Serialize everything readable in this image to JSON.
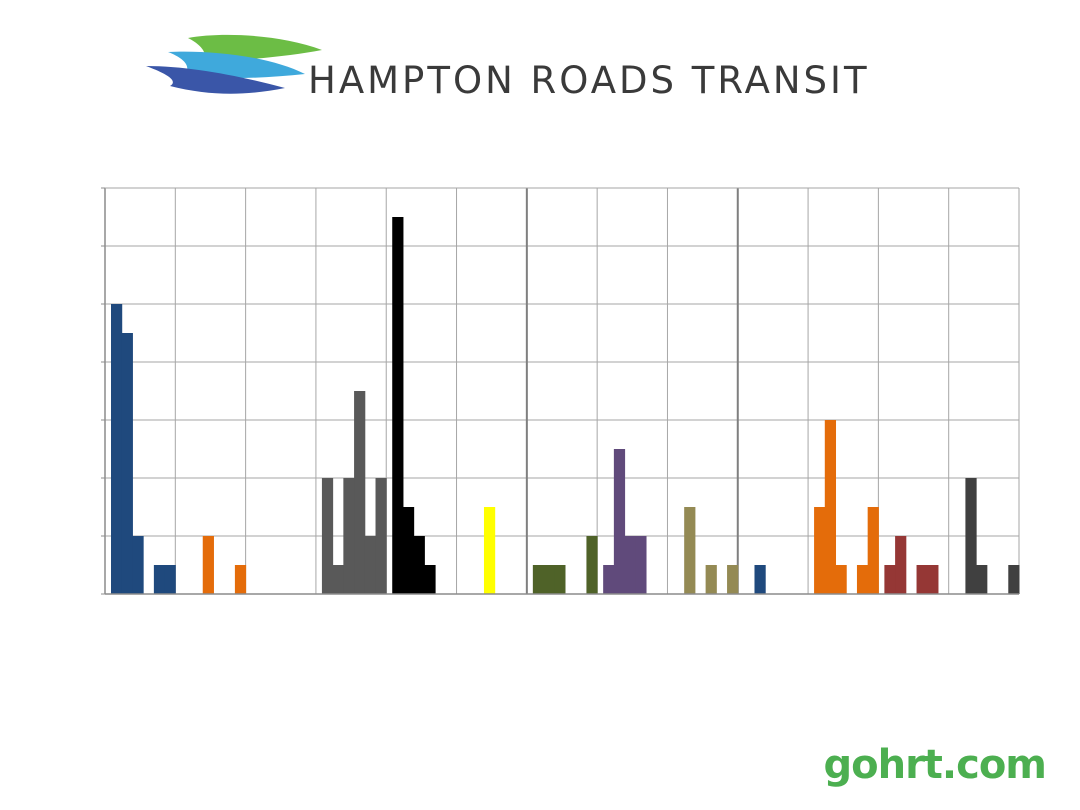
{
  "brand": {
    "name": "HAMPTON ROADS TRANSIT",
    "site": "gohrt.com",
    "logo_colors": [
      "#6cbd45",
      "#3fa9dc",
      "#3a56a8"
    ]
  },
  "chart_data": {
    "type": "bar",
    "title": "",
    "xlabel": "",
    "ylabel": "",
    "ylim": [
      0,
      14
    ],
    "y_gridline_step": 2,
    "group_count": 13,
    "group_dividers_bold_after": [
      6,
      9
    ],
    "grid": true,
    "series": [
      {
        "group": 1,
        "color": "#1f497d",
        "values": [
          10,
          9,
          2,
          0,
          1,
          1
        ]
      },
      {
        "group": 2,
        "color": "#e46c0a",
        "values": [
          0,
          0,
          2,
          0,
          0,
          1
        ]
      },
      {
        "group": 3,
        "color": "#595959",
        "values": [
          0,
          0,
          0,
          0,
          0,
          0
        ]
      },
      {
        "group": 4,
        "color": "#595959",
        "values": [
          4,
          1,
          4,
          7,
          2,
          4
        ]
      },
      {
        "group": 5,
        "color": "#000000",
        "values": [
          13,
          3,
          2,
          1,
          0,
          0
        ]
      },
      {
        "group": 6,
        "color": "#ffff00",
        "values": [
          0,
          0,
          3,
          0,
          0,
          0
        ]
      },
      {
        "group": 7,
        "color": "#4f6228",
        "values": [
          1,
          1,
          1,
          0,
          0,
          2
        ]
      },
      {
        "group": 8,
        "color": "#604a7b",
        "values": [
          1,
          5,
          2,
          2,
          0,
          0
        ]
      },
      {
        "group": 9,
        "color": "#948a54",
        "values": [
          0,
          3,
          0,
          1,
          0,
          1
        ]
      },
      {
        "group": 10,
        "color": "#1f497d",
        "values": [
          0,
          1,
          0,
          0,
          0,
          0
        ]
      },
      {
        "group": 11,
        "color": "#e46c0a",
        "values": [
          3,
          6,
          1,
          0,
          1,
          3
        ]
      },
      {
        "group": 12,
        "color": "#953735",
        "values": [
          1,
          2,
          0,
          1,
          1,
          0
        ]
      },
      {
        "group": 13,
        "color": "#404040",
        "values": [
          0,
          4,
          1,
          0,
          0,
          1
        ]
      }
    ]
  }
}
